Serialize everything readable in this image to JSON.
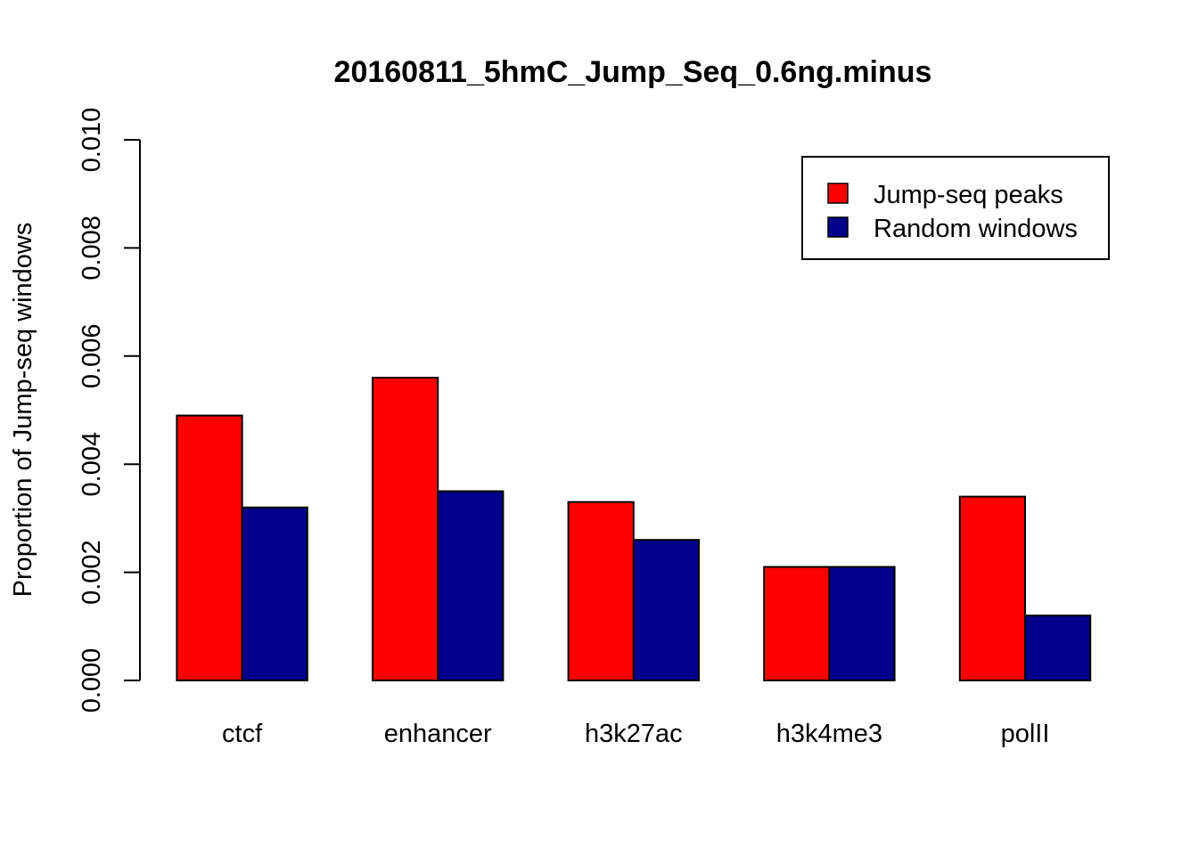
{
  "chart_data": {
    "type": "bar",
    "title": "20160811_5hmC_Jump_Seq_0.6ng.minus",
    "xlabel": "",
    "ylabel": "Proportion of Jump-seq windows",
    "ylim": [
      0,
      0.01
    ],
    "yticks": [
      "0.000",
      "0.002",
      "0.004",
      "0.006",
      "0.008",
      "0.010"
    ],
    "ytick_values": [
      0,
      0.002,
      0.004,
      0.006,
      0.008,
      0.01
    ],
    "categories": [
      "ctcf",
      "enhancer",
      "h3k27ac",
      "h3k4me3",
      "polII"
    ],
    "series": [
      {
        "name": "Jump-seq peaks",
        "color": "#ff0000",
        "values": [
          0.0049,
          0.0056,
          0.0033,
          0.0021,
          0.0034
        ]
      },
      {
        "name": "Random windows",
        "color": "#00008b",
        "values": [
          0.0032,
          0.0035,
          0.0026,
          0.0021,
          0.0012
        ]
      }
    ],
    "grid": false,
    "legend_position": "top-right"
  }
}
